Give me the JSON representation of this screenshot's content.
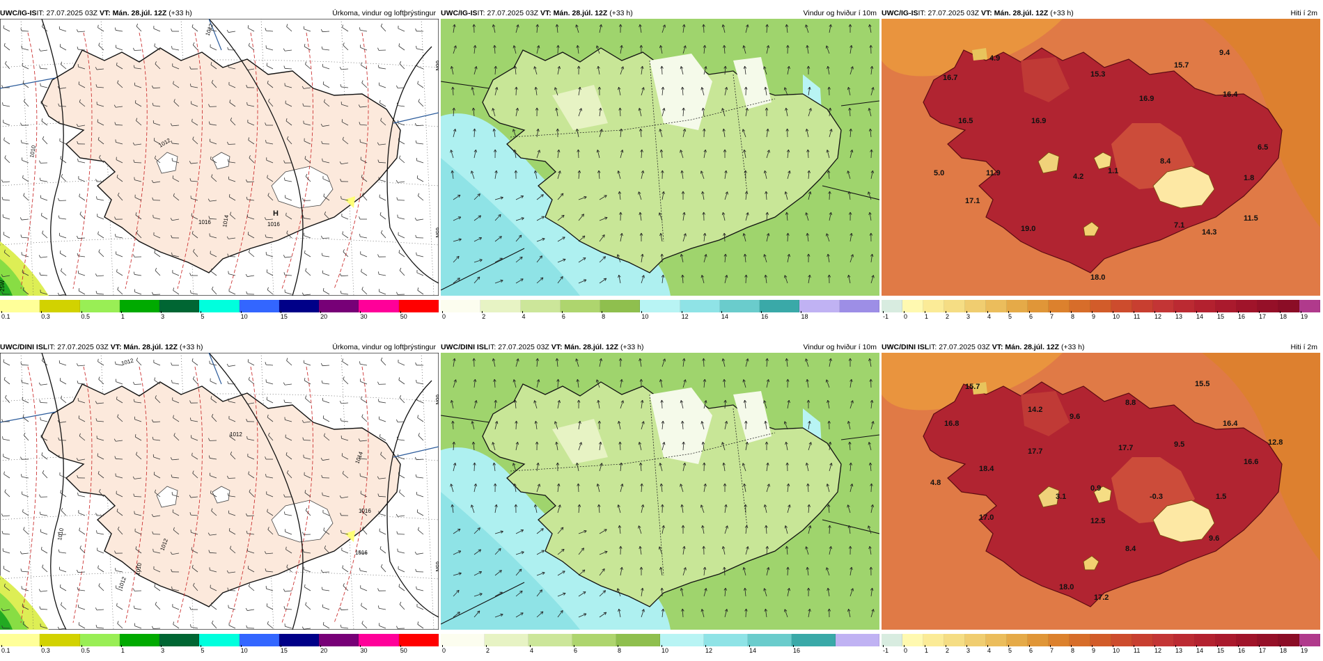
{
  "header_common": {
    "it_prefix": "IT: ",
    "it_value": "27.07.2025 03Z",
    "vt_prefix": " VT: ",
    "vt_value": "Mán. 28.júl. 12Z",
    "lead": " (+33 h)"
  },
  "panels": [
    {
      "id": "p1",
      "model": "UWC/IG-IS",
      "title": "Úrkoma, vindur og loftþrýstingur",
      "kind": "precip",
      "colorbar_labels": [
        "0.1",
        "0.3",
        "0.5",
        "1",
        "3",
        "5",
        "10",
        "15",
        "20",
        "30",
        "50"
      ],
      "colorbar_colors": [
        "#ffff99",
        "#d2d200",
        "#99ee55",
        "#00aa00",
        "#006633",
        "#00ffdd",
        "#3366ff",
        "#000088",
        "#770077",
        "#ff0099",
        "#ff0000"
      ],
      "pressure_labels": [
        "1012",
        "1010",
        "1012",
        "1014",
        "1016"
      ],
      "high_label": "H",
      "high_value": "1016"
    },
    {
      "id": "p2",
      "model": "UWC/IG-IS",
      "title": "Vindur og hviður í 10m",
      "kind": "wind",
      "colorbar_labels": [
        "0",
        "2",
        "4",
        "6",
        "8",
        "10",
        "12",
        "14",
        "16",
        "18"
      ],
      "colorbar_colors": [
        "#fcfdef",
        "#e7f3c4",
        "#cce69a",
        "#aed56e",
        "#8fbf4e",
        "#b8f4f4",
        "#8fe3e6",
        "#6acccc",
        "#3aa9a8",
        "#c0b2f3",
        "#9d8ee6"
      ]
    },
    {
      "id": "p3",
      "model": "UWC/IG-IS",
      "title": "Hiti í 2m",
      "kind": "temp",
      "colorbar_labels": [
        "-1",
        "0",
        "1",
        "2",
        "3",
        "4",
        "5",
        "6",
        "7",
        "8",
        "9",
        "10",
        "11",
        "12",
        "13",
        "14",
        "15",
        "16",
        "17",
        "18",
        "19"
      ],
      "colorbar_colors": [
        "#d8ece0",
        "#fff9b0",
        "#fbeb97",
        "#f5dd84",
        "#f0cd70",
        "#ebbd5c",
        "#e5aa48",
        "#e09638",
        "#dc812d",
        "#d76d2a",
        "#d25c2a",
        "#cd4c2d",
        "#c83f30",
        "#c33535",
        "#bb2a32",
        "#b3212f",
        "#aa1a2d",
        "#a0142a",
        "#951028",
        "#8b0d26",
        "#b03a8c"
      ],
      "temp_labels": [
        "4.9",
        "16.7",
        "15.3",
        "15.7",
        "9.4",
        "16.5",
        "16.4",
        "16.9",
        "16.9",
        "6.5",
        "8.4",
        "5.0",
        "11.9",
        "4.2",
        "1.1",
        "1.8",
        "17.1",
        "11.5",
        "7.1",
        "14.3",
        "19.0",
        "18.0"
      ]
    },
    {
      "id": "p4",
      "model": "UWC/DINI ISL",
      "title": "Úrkoma, vindur og loftþrýstingur",
      "kind": "precip",
      "colorbar_labels": [
        "0.1",
        "0.3",
        "0.5",
        "1",
        "3",
        "5",
        "10",
        "15",
        "20",
        "30",
        "50"
      ],
      "colorbar_colors": [
        "#ffff99",
        "#d2d200",
        "#99ee55",
        "#00aa00",
        "#006633",
        "#00ffdd",
        "#3366ff",
        "#000088",
        "#770077",
        "#ff0099",
        "#ff0000"
      ],
      "pressure_labels": [
        "1012",
        "1012",
        "1010",
        "1012",
        "1014",
        "1016",
        "1016",
        "1010",
        "1012"
      ],
      "high_label": "",
      "high_value": ""
    },
    {
      "id": "p5",
      "model": "UWC/DINI ISL",
      "title": "Vindur og hviður í 10m",
      "kind": "wind",
      "colorbar_labels": [
        "0",
        "2",
        "4",
        "6",
        "8",
        "10",
        "12",
        "14",
        "16"
      ],
      "colorbar_colors": [
        "#fcfdef",
        "#e7f3c4",
        "#cce69a",
        "#aed56e",
        "#8fbf4e",
        "#b8f4f4",
        "#8fe3e6",
        "#6acccc",
        "#3aa9a8",
        "#c0b2f3"
      ]
    },
    {
      "id": "p6",
      "model": "UWC/DINI ISL",
      "title": "Hiti í 2m",
      "kind": "temp",
      "colorbar_labels": [
        "-1",
        "0",
        "1",
        "2",
        "3",
        "4",
        "5",
        "6",
        "7",
        "8",
        "9",
        "10",
        "11",
        "12",
        "13",
        "14",
        "15",
        "16",
        "17",
        "18",
        "19"
      ],
      "colorbar_colors": [
        "#d8ece0",
        "#fff9b0",
        "#fbeb97",
        "#f5dd84",
        "#f0cd70",
        "#ebbd5c",
        "#e5aa48",
        "#e09638",
        "#dc812d",
        "#d76d2a",
        "#d25c2a",
        "#cd4c2d",
        "#c83f30",
        "#c33535",
        "#bb2a32",
        "#b3212f",
        "#aa1a2d",
        "#a0142a",
        "#951028",
        "#8b0d26",
        "#b03a8c"
      ],
      "temp_labels": [
        "15.7",
        "14.2",
        "15.5",
        "16.8",
        "9.6",
        "8.8",
        "16.4",
        "12.8",
        "17.7",
        "17.7",
        "9.5",
        "16.6",
        "18.4",
        "4.8",
        "3.1",
        "0.9",
        "-0.3",
        "1.5",
        "17.0",
        "12.5",
        "9.6",
        "8.4",
        "18.0",
        "17.2"
      ]
    }
  ],
  "map_labels": {
    "lat_66": "66N",
    "lat_65": "65N",
    "lon_25w": "25W"
  }
}
